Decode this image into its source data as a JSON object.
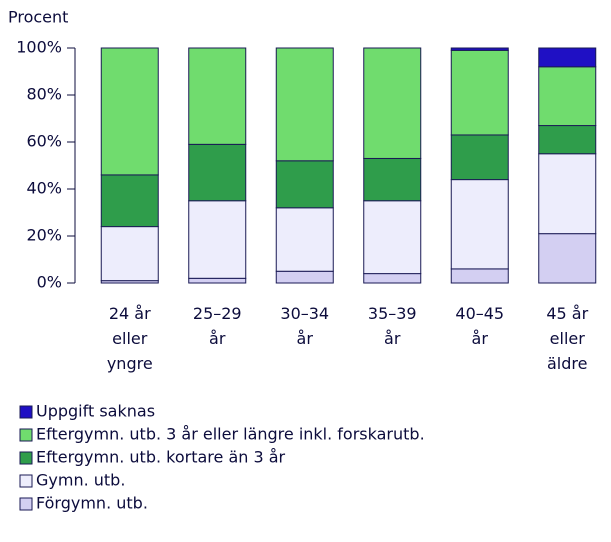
{
  "chart_data": {
    "type": "stacked_bar",
    "y_label": "Procent",
    "categories": [
      "24 år\neller\nyngre",
      "25–29\når",
      "30–34\når",
      "35–39\når",
      "40–45\når",
      "45 år\neller\näldre"
    ],
    "series": [
      {
        "name": "Förgymn. utb.",
        "color": "#d3cff2",
        "values": [
          1,
          2,
          5,
          4,
          6,
          21
        ]
      },
      {
        "name": "Gymn. utb.",
        "color": "#ededfc",
        "values": [
          23,
          33,
          27,
          31,
          38,
          34
        ]
      },
      {
        "name": "Eftergymn. utb. kortare än 3 år",
        "color": "#2f9d4b",
        "values": [
          22,
          24,
          20,
          18,
          19,
          12
        ]
      },
      {
        "name": "Eftergymn. utb. 3 år eller längre inkl. forskarutb.",
        "color": "#70dc6e",
        "values": [
          54,
          41,
          48,
          47,
          36,
          25
        ]
      },
      {
        "name": "Uppgift saknas",
        "color": "#1f10c4",
        "values": [
          0,
          0,
          0,
          0,
          1,
          8
        ]
      }
    ],
    "ylim": [
      0,
      100
    ],
    "yticks": [
      {
        "value": 0,
        "label": "0%"
      },
      {
        "value": 20,
        "label": "20%"
      },
      {
        "value": 40,
        "label": "40%"
      },
      {
        "value": 60,
        "label": "60%"
      },
      {
        "value": 80,
        "label": "80%"
      },
      {
        "value": 100,
        "label": "100%"
      }
    ]
  }
}
